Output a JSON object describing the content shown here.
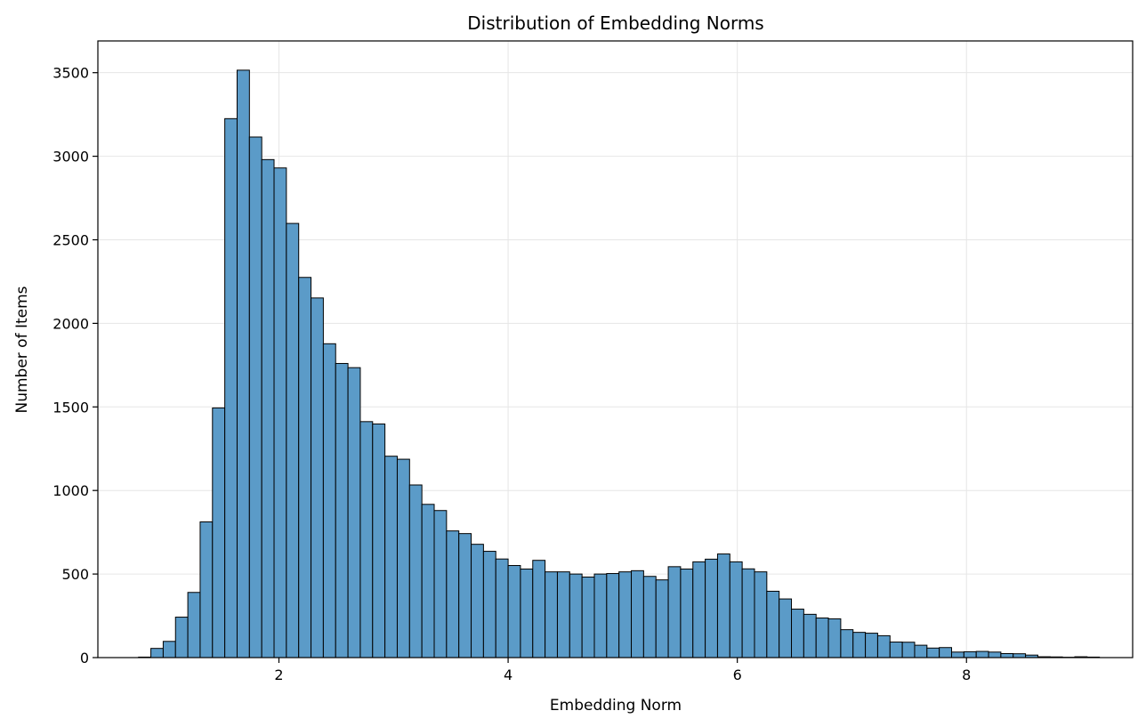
{
  "chart_data": {
    "type": "histogram",
    "title": "Distribution of Embedding Norms",
    "xlabel": "Embedding Norm",
    "ylabel": "Number of Items",
    "xlim": [
      0.42,
      9.45
    ],
    "ylim": [
      0,
      3690
    ],
    "xticks": [
      2,
      4,
      6,
      8
    ],
    "yticks": [
      0,
      500,
      1000,
      1500,
      2000,
      2500,
      3000,
      3500
    ],
    "grid": true,
    "bar_color": "#5b9bc8",
    "edge_color": "#000000",
    "bins": {
      "start": 0.775,
      "width": 0.1075,
      "counts": [
        3,
        55,
        97,
        242,
        390,
        812,
        1494,
        3225,
        3515,
        3115,
        2980,
        2930,
        2598,
        2275,
        2152,
        1878,
        1760,
        1735,
        1412,
        1398,
        1205,
        1187,
        1033,
        917,
        880,
        758,
        742,
        678,
        636,
        590,
        551,
        530,
        582,
        513,
        513,
        500,
        482,
        500,
        503,
        513,
        520,
        486,
        465,
        544,
        530,
        573,
        589,
        620,
        573,
        531,
        513,
        397,
        351,
        290,
        259,
        237,
        232,
        167,
        151,
        146,
        131,
        93,
        92,
        74,
        57,
        60,
        33,
        35,
        37,
        33,
        24,
        23,
        15,
        5,
        4,
        2,
        5,
        3
      ]
    }
  }
}
